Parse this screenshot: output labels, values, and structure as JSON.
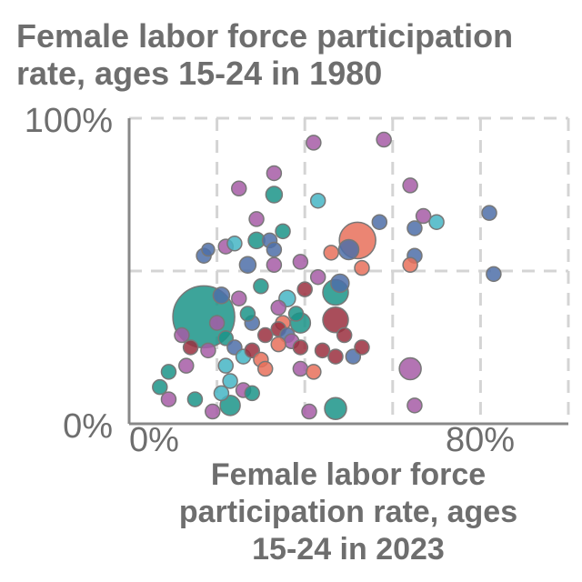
{
  "chart_data": {
    "type": "scatter",
    "title_lines": [
      "Female labor force participation",
      "rate, ages 15-24 in 1980"
    ],
    "xlabel_lines": [
      "Female labor force",
      "participation rate, ages",
      "15-24 in 2023"
    ],
    "x_ticks": [
      {
        "value": 0,
        "label": "0%"
      },
      {
        "value": 80,
        "label": "80%"
      }
    ],
    "y_ticks": [
      {
        "value": 0,
        "label": "0%"
      },
      {
        "value": 100,
        "label": "100%"
      }
    ],
    "xlim": [
      0,
      100
    ],
    "ylim": [
      0,
      100
    ],
    "grid": true,
    "colors": {
      "teal": "#1b9488",
      "blue": "#4d6ea8",
      "purple": "#a65ca6",
      "salmon": "#e8705a",
      "cyan": "#45b5c4",
      "maroon": "#9a2f3e"
    },
    "points": [
      {
        "x": 17,
        "y": 35,
        "size": 34,
        "color": "teal"
      },
      {
        "x": 47,
        "y": 43,
        "size": 14,
        "color": "teal"
      },
      {
        "x": 39,
        "y": 33,
        "size": 11,
        "color": "teal"
      },
      {
        "x": 47,
        "y": 5,
        "size": 12,
        "color": "teal"
      },
      {
        "x": 23,
        "y": 6,
        "size": 11,
        "color": "teal"
      },
      {
        "x": 52,
        "y": 60,
        "size": 20,
        "color": "salmon"
      },
      {
        "x": 47,
        "y": 34,
        "size": 14,
        "color": "maroon"
      },
      {
        "x": 64,
        "y": 18,
        "size": 12,
        "color": "purple"
      },
      {
        "x": 50,
        "y": 57,
        "size": 11,
        "color": "blue"
      },
      {
        "x": 48,
        "y": 46,
        "size": 10,
        "color": "blue"
      },
      {
        "x": 33,
        "y": 75,
        "size": 9,
        "color": "teal"
      },
      {
        "x": 29,
        "y": 60,
        "size": 9,
        "color": "teal"
      },
      {
        "x": 27,
        "y": 52,
        "size": 9,
        "color": "blue"
      },
      {
        "x": 35,
        "y": 63,
        "size": 8,
        "color": "teal"
      },
      {
        "x": 22,
        "y": 58,
        "size": 8,
        "color": "purple"
      },
      {
        "x": 24,
        "y": 59,
        "size": 8,
        "color": "cyan"
      },
      {
        "x": 17,
        "y": 55,
        "size": 8,
        "color": "blue"
      },
      {
        "x": 18,
        "y": 57,
        "size": 7,
        "color": "blue"
      },
      {
        "x": 42,
        "y": 92,
        "size": 8,
        "color": "purple"
      },
      {
        "x": 58,
        "y": 93,
        "size": 8,
        "color": "purple"
      },
      {
        "x": 33,
        "y": 82,
        "size": 8,
        "color": "purple"
      },
      {
        "x": 25,
        "y": 77,
        "size": 8,
        "color": "purple"
      },
      {
        "x": 43,
        "y": 73,
        "size": 8,
        "color": "cyan"
      },
      {
        "x": 64,
        "y": 78,
        "size": 8,
        "color": "purple"
      },
      {
        "x": 57,
        "y": 66,
        "size": 8,
        "color": "blue"
      },
      {
        "x": 65,
        "y": 64,
        "size": 8,
        "color": "blue"
      },
      {
        "x": 67,
        "y": 68,
        "size": 8,
        "color": "purple"
      },
      {
        "x": 70,
        "y": 66,
        "size": 8,
        "color": "cyan"
      },
      {
        "x": 82,
        "y": 69,
        "size": 8,
        "color": "blue"
      },
      {
        "x": 83,
        "y": 49,
        "size": 8,
        "color": "blue"
      },
      {
        "x": 65,
        "y": 55,
        "size": 8,
        "color": "blue"
      },
      {
        "x": 64,
        "y": 52,
        "size": 8,
        "color": "salmon"
      },
      {
        "x": 46,
        "y": 56,
        "size": 8,
        "color": "salmon"
      },
      {
        "x": 29,
        "y": 67,
        "size": 8,
        "color": "purple"
      },
      {
        "x": 32,
        "y": 60,
        "size": 8,
        "color": "blue"
      },
      {
        "x": 33,
        "y": 57,
        "size": 8,
        "color": "blue"
      },
      {
        "x": 33,
        "y": 52,
        "size": 8,
        "color": "purple"
      },
      {
        "x": 30,
        "y": 45,
        "size": 8,
        "color": "teal"
      },
      {
        "x": 34,
        "y": 38,
        "size": 8,
        "color": "purple"
      },
      {
        "x": 36,
        "y": 41,
        "size": 9,
        "color": "cyan"
      },
      {
        "x": 39,
        "y": 53,
        "size": 8,
        "color": "purple"
      },
      {
        "x": 43,
        "y": 48,
        "size": 8,
        "color": "purple"
      },
      {
        "x": 40,
        "y": 44,
        "size": 8,
        "color": "maroon"
      },
      {
        "x": 38,
        "y": 36,
        "size": 8,
        "color": "teal"
      },
      {
        "x": 35,
        "y": 33,
        "size": 8,
        "color": "salmon"
      },
      {
        "x": 34,
        "y": 31,
        "size": 8,
        "color": "maroon"
      },
      {
        "x": 36,
        "y": 29,
        "size": 8,
        "color": "blue"
      },
      {
        "x": 37,
        "y": 27,
        "size": 8,
        "color": "purple"
      },
      {
        "x": 34,
        "y": 26,
        "size": 8,
        "color": "salmon"
      },
      {
        "x": 31,
        "y": 29,
        "size": 8,
        "color": "maroon"
      },
      {
        "x": 28,
        "y": 33,
        "size": 8,
        "color": "blue"
      },
      {
        "x": 27,
        "y": 36,
        "size": 8,
        "color": "teal"
      },
      {
        "x": 25,
        "y": 41,
        "size": 8,
        "color": "purple"
      },
      {
        "x": 21,
        "y": 42,
        "size": 9,
        "color": "blue"
      },
      {
        "x": 20,
        "y": 33,
        "size": 8,
        "color": "purple"
      },
      {
        "x": 22,
        "y": 28,
        "size": 8,
        "color": "teal"
      },
      {
        "x": 24,
        "y": 25,
        "size": 8,
        "color": "blue"
      },
      {
        "x": 26,
        "y": 22,
        "size": 8,
        "color": "cyan"
      },
      {
        "x": 28,
        "y": 24,
        "size": 8,
        "color": "maroon"
      },
      {
        "x": 30,
        "y": 21,
        "size": 8,
        "color": "salmon"
      },
      {
        "x": 31,
        "y": 18,
        "size": 8,
        "color": "salmon"
      },
      {
        "x": 39,
        "y": 25,
        "size": 8,
        "color": "maroon"
      },
      {
        "x": 44,
        "y": 24,
        "size": 8,
        "color": "maroon"
      },
      {
        "x": 39,
        "y": 18,
        "size": 8,
        "color": "purple"
      },
      {
        "x": 42,
        "y": 17,
        "size": 8,
        "color": "salmon"
      },
      {
        "x": 49,
        "y": 29,
        "size": 8,
        "color": "maroon"
      },
      {
        "x": 51,
        "y": 22,
        "size": 8,
        "color": "blue"
      },
      {
        "x": 53,
        "y": 25,
        "size": 8,
        "color": "maroon"
      },
      {
        "x": 53,
        "y": 51,
        "size": 8,
        "color": "salmon"
      },
      {
        "x": 18,
        "y": 24,
        "size": 8,
        "color": "purple"
      },
      {
        "x": 12,
        "y": 29,
        "size": 8,
        "color": "purple"
      },
      {
        "x": 14,
        "y": 25,
        "size": 8,
        "color": "maroon"
      },
      {
        "x": 13,
        "y": 19,
        "size": 8,
        "color": "purple"
      },
      {
        "x": 9,
        "y": 17,
        "size": 8,
        "color": "teal"
      },
      {
        "x": 7,
        "y": 12,
        "size": 8,
        "color": "teal"
      },
      {
        "x": 9,
        "y": 8,
        "size": 8,
        "color": "purple"
      },
      {
        "x": 15,
        "y": 8,
        "size": 8,
        "color": "teal"
      },
      {
        "x": 19,
        "y": 4,
        "size": 8,
        "color": "purple"
      },
      {
        "x": 21,
        "y": 10,
        "size": 8,
        "color": "cyan"
      },
      {
        "x": 23,
        "y": 14,
        "size": 8,
        "color": "cyan"
      },
      {
        "x": 26,
        "y": 11,
        "size": 8,
        "color": "purple"
      },
      {
        "x": 28,
        "y": 10,
        "size": 8,
        "color": "teal"
      },
      {
        "x": 22,
        "y": 19,
        "size": 8,
        "color": "cyan"
      },
      {
        "x": 41,
        "y": 4,
        "size": 8,
        "color": "purple"
      },
      {
        "x": 65,
        "y": 6,
        "size": 8,
        "color": "purple"
      },
      {
        "x": 47,
        "y": 22,
        "size": 8,
        "color": "maroon"
      }
    ]
  }
}
